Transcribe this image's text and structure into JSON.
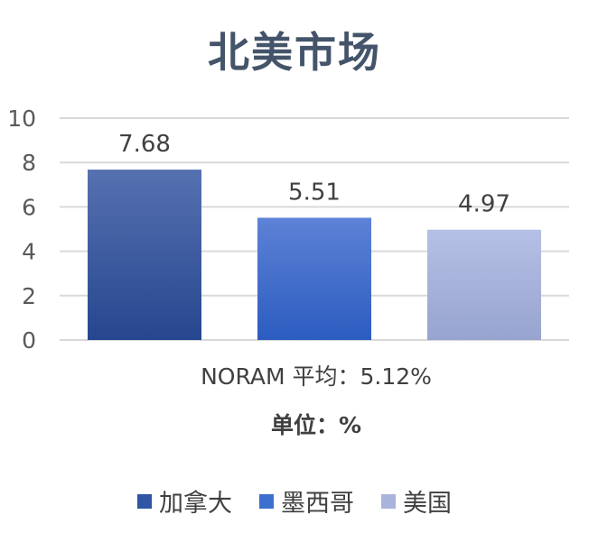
{
  "chart_data": {
    "type": "bar",
    "title": "北美市场",
    "categories": [
      "加拿大",
      "墨西哥",
      "美国"
    ],
    "values": [
      7.68,
      5.51,
      4.97
    ],
    "value_labels": [
      "7.68",
      "5.51",
      "4.97"
    ],
    "ylim": [
      0,
      10
    ],
    "yticks": [
      0,
      2,
      4,
      6,
      8,
      10
    ],
    "grid": true,
    "legend_position": "bottom",
    "colors": [
      "#2f55a4",
      "#3d6fd0",
      "#a9b4db"
    ],
    "annotations": [
      "NORAM 平均：5.12%",
      "单位：%"
    ]
  },
  "legend": {
    "items": [
      {
        "label": "加拿大",
        "color": "#2f55a4"
      },
      {
        "label": "墨西哥",
        "color": "#3d6fd0"
      },
      {
        "label": "美国",
        "color": "#a9b4db"
      }
    ]
  }
}
